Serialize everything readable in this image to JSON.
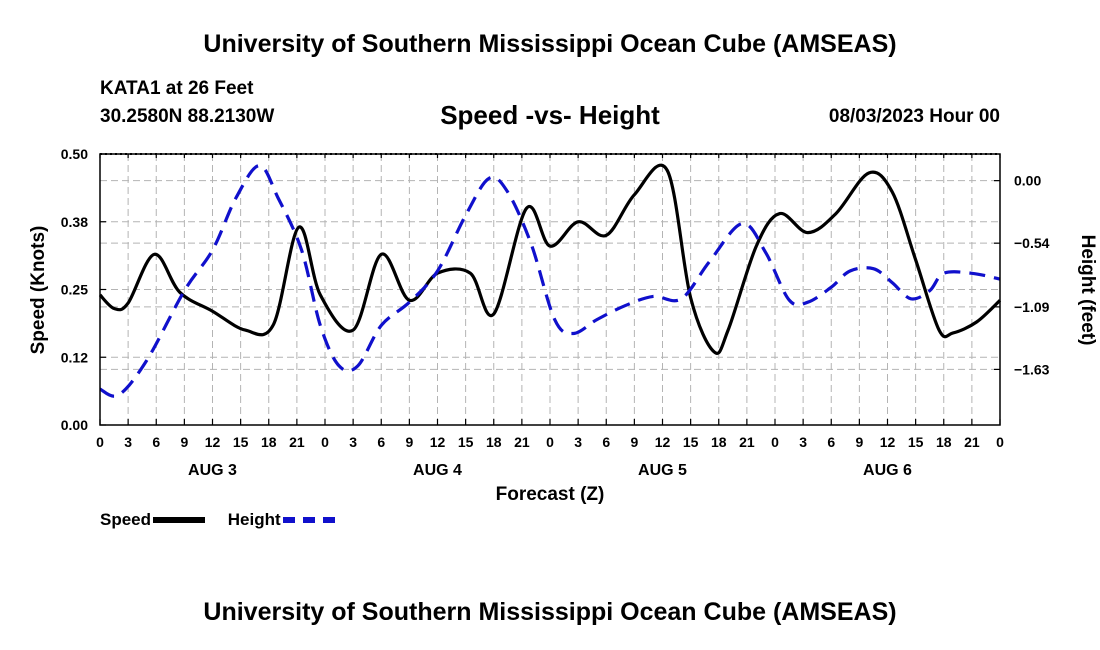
{
  "header": {
    "title": "University of Southern Mississippi Ocean Cube (AMSEAS)",
    "station": "KATA1 at 26 Feet",
    "coords": "30.2580N  88.2130W",
    "date": "08/03/2023 Hour 00",
    "footer_title": "University of Southern Mississippi Ocean Cube (AMSEAS)"
  },
  "legend": {
    "speed_label": "Speed",
    "height_label": "Height"
  },
  "colors": {
    "speed": "#000000",
    "height": "#1010cc",
    "grid": "#b4b4b4"
  },
  "chart_data": {
    "type": "line",
    "title": "Speed -vs- Height",
    "xlabel": "Forecast (Z)",
    "ylabel": "Speed (Knots)",
    "y2label": "Height (feet)",
    "x_range_hours": [
      0,
      96
    ],
    "ylim": [
      0,
      0.5
    ],
    "y2lim": [
      -2.11,
      0.23
    ],
    "y_ticks": [
      "0.00",
      "0.12",
      "0.25",
      "0.38",
      "0.50"
    ],
    "y_tick_values": [
      0,
      0.125,
      0.25,
      0.375,
      0.5
    ],
    "y2_ticks": [
      "0.00",
      "−0.54",
      "−1.09",
      "−1.63"
    ],
    "y2_tick_values": [
      0,
      -0.54,
      -1.09,
      -1.63
    ],
    "x_ticks": [
      "0",
      "3",
      "6",
      "9",
      "12",
      "15",
      "18",
      "21",
      "0",
      "3",
      "6",
      "9",
      "12",
      "15",
      "18",
      "21",
      "0",
      "3",
      "6",
      "9",
      "12",
      "15",
      "18",
      "21",
      "0",
      "3",
      "6",
      "9",
      "12",
      "15",
      "18",
      "21",
      "0"
    ],
    "day_labels": [
      {
        "label": "AUG 3",
        "hour": 12
      },
      {
        "label": "AUG 4",
        "hour": 36
      },
      {
        "label": "AUG 5",
        "hour": 60
      },
      {
        "label": "AUG 6",
        "hour": 84
      }
    ],
    "series": [
      {
        "name": "Speed",
        "axis": "left",
        "style": "solid",
        "points": [
          [
            0,
            0.24
          ],
          [
            1.5,
            0.215
          ],
          [
            3,
            0.225
          ],
          [
            5.8,
            0.315
          ],
          [
            8.5,
            0.245
          ],
          [
            12,
            0.21
          ],
          [
            15.5,
            0.175
          ],
          [
            18.5,
            0.185
          ],
          [
            21.2,
            0.365
          ],
          [
            23.5,
            0.24
          ],
          [
            27,
            0.175
          ],
          [
            30,
            0.315
          ],
          [
            33,
            0.23
          ],
          [
            36,
            0.28
          ],
          [
            39.5,
            0.28
          ],
          [
            42,
            0.205
          ],
          [
            45.5,
            0.4
          ],
          [
            48,
            0.33
          ],
          [
            51,
            0.375
          ],
          [
            54,
            0.35
          ],
          [
            57,
            0.425
          ],
          [
            60.5,
            0.47
          ],
          [
            63,
            0.235
          ],
          [
            65.5,
            0.135
          ],
          [
            67,
            0.175
          ],
          [
            70,
            0.33
          ],
          [
            72.5,
            0.39
          ],
          [
            75.5,
            0.355
          ],
          [
            78.5,
            0.39
          ],
          [
            82,
            0.465
          ],
          [
            84.5,
            0.43
          ],
          [
            87,
            0.305
          ],
          [
            89.5,
            0.175
          ],
          [
            91,
            0.17
          ],
          [
            93.5,
            0.19
          ],
          [
            96,
            0.23
          ]
        ]
      },
      {
        "name": "Height",
        "axis": "right",
        "style": "dashed",
        "points": [
          [
            0,
            -1.8
          ],
          [
            2,
            -1.85
          ],
          [
            5,
            -1.55
          ],
          [
            9,
            -0.95
          ],
          [
            12,
            -0.6
          ],
          [
            14.5,
            -0.15
          ],
          [
            17,
            0.13
          ],
          [
            19,
            -0.15
          ],
          [
            21.5,
            -0.6
          ],
          [
            23.5,
            -1.25
          ],
          [
            25.5,
            -1.6
          ],
          [
            27.5,
            -1.6
          ],
          [
            30,
            -1.25
          ],
          [
            33,
            -1.05
          ],
          [
            36,
            -0.78
          ],
          [
            39,
            -0.3
          ],
          [
            41.5,
            0.02
          ],
          [
            43.5,
            -0.1
          ],
          [
            46,
            -0.55
          ],
          [
            48.5,
            -1.2
          ],
          [
            50.5,
            -1.32
          ],
          [
            53,
            -1.2
          ],
          [
            56,
            -1.08
          ],
          [
            59,
            -1.0
          ],
          [
            62,
            -1.02
          ],
          [
            65,
            -0.7
          ],
          [
            68.5,
            -0.37
          ],
          [
            71,
            -0.62
          ],
          [
            73.5,
            -1.03
          ],
          [
            75.5,
            -1.05
          ],
          [
            78,
            -0.92
          ],
          [
            80,
            -0.78
          ],
          [
            82.5,
            -0.76
          ],
          [
            84.5,
            -0.88
          ],
          [
            86.5,
            -1.02
          ],
          [
            88.5,
            -0.95
          ],
          [
            90,
            -0.8
          ],
          [
            93,
            -0.8
          ],
          [
            96,
            -0.85
          ]
        ]
      }
    ]
  }
}
